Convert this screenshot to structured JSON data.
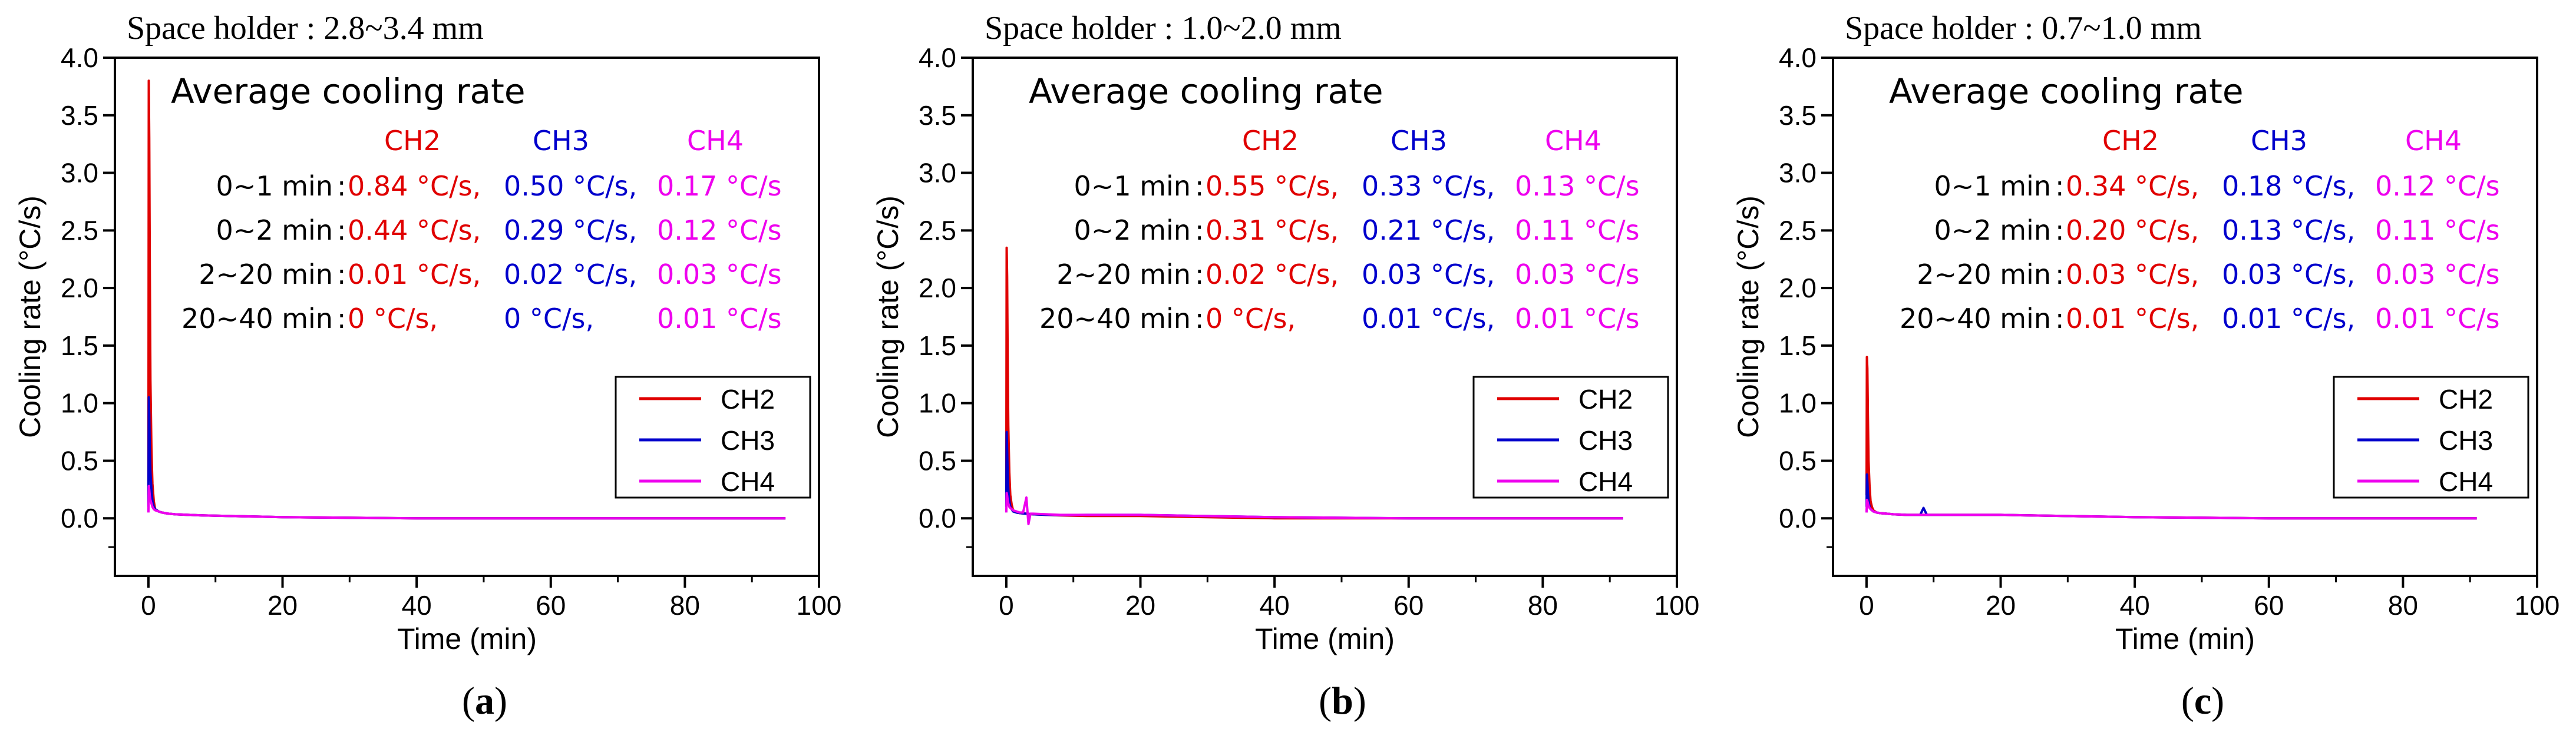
{
  "chart_data": [
    {
      "type": "line",
      "panel_label": "a",
      "title": "Space holder : 2.8~3.4 mm",
      "xlabel": "Time (min)",
      "ylabel": "Cooling rate (°C/s)",
      "xlim": [
        -5,
        100
      ],
      "ylim": [
        -0.5,
        4.0
      ],
      "xticks": [
        0,
        20,
        40,
        60,
        80,
        100
      ],
      "xtick_labels": [
        "0",
        "20",
        "40",
        "60",
        "80",
        "100"
      ],
      "yticks": [
        0.0,
        0.5,
        1.0,
        1.5,
        2.0,
        2.5,
        3.0,
        3.5,
        4.0
      ],
      "ytick_labels": [
        "0.0",
        "0.5",
        "1.0",
        "1.5",
        "2.0",
        "2.5",
        "3.0",
        "3.5",
        "4.0"
      ],
      "legend": [
        "CH2",
        "CH3",
        "CH4"
      ],
      "legend_position": "lower-right",
      "series": [
        {
          "name": "CH2",
          "color": "#e00000",
          "x": [
            0,
            0.05,
            0.12,
            0.2,
            0.3,
            0.45,
            0.6,
            0.8,
            1,
            1.5,
            2,
            3,
            4,
            6,
            8,
            12,
            20,
            40,
            60,
            80,
            95
          ],
          "y": [
            0.2,
            3.8,
            3.3,
            2.2,
            1.2,
            0.6,
            0.3,
            0.15,
            0.08,
            0.06,
            0.05,
            0.04,
            0.035,
            0.03,
            0.025,
            0.02,
            0.01,
            0.0,
            0.0,
            0.0,
            0.0
          ]
        },
        {
          "name": "CH3",
          "color": "#0000cc",
          "x": [
            0,
            0.05,
            0.12,
            0.2,
            0.3,
            0.45,
            0.6,
            0.8,
            1,
            1.5,
            2,
            3,
            4,
            6,
            8,
            12,
            20,
            40,
            60,
            80,
            95
          ],
          "y": [
            0.1,
            1.05,
            0.9,
            0.6,
            0.4,
            0.25,
            0.15,
            0.1,
            0.08,
            0.06,
            0.05,
            0.04,
            0.035,
            0.03,
            0.025,
            0.02,
            0.01,
            0.0,
            0.0,
            0.0,
            0.0
          ]
        },
        {
          "name": "CH4",
          "color": "#ee00ee",
          "x": [
            0,
            0.05,
            0.12,
            0.2,
            0.3,
            0.45,
            0.6,
            0.8,
            1,
            1.5,
            2,
            3,
            4,
            6,
            8,
            12,
            20,
            40,
            60,
            80,
            95
          ],
          "y": [
            0.05,
            0.28,
            0.25,
            0.2,
            0.16,
            0.13,
            0.1,
            0.08,
            0.07,
            0.06,
            0.05,
            0.04,
            0.035,
            0.03,
            0.025,
            0.02,
            0.01,
            0.0,
            0.0,
            0.0,
            0.0
          ]
        }
      ],
      "annotation": {
        "heading": "Average cooling rate",
        "columns": [
          "CH2",
          "CH3",
          "CH4"
        ],
        "rows": [
          {
            "label": "0~1 min",
            "values": [
              "0.84 °C/s,",
              "0.50 °C/s,",
              "0.17 °C/s"
            ]
          },
          {
            "label": "0~2 min",
            "values": [
              "0.44 °C/s,",
              "0.29 °C/s,",
              "0.12 °C/s"
            ]
          },
          {
            "label": "2~20 min",
            "values": [
              "0.01 °C/s,",
              "0.02 °C/s,",
              "0.03 °C/s"
            ]
          },
          {
            "label": "20~40 min",
            "values": [
              "0 °C/s,",
              "0 °C/s,",
              "0.01 °C/s"
            ]
          }
        ]
      }
    },
    {
      "type": "line",
      "panel_label": "b",
      "title": "Space holder : 1.0~2.0 mm",
      "xlabel": "Time (min)",
      "ylabel": "Cooling rate (°C/s)",
      "xlim": [
        -5,
        100
      ],
      "ylim": [
        -0.5,
        4.0
      ],
      "xticks": [
        0,
        20,
        40,
        60,
        80,
        100
      ],
      "xtick_labels": [
        "0",
        "20",
        "40",
        "60",
        "80",
        "100"
      ],
      "yticks": [
        0.0,
        0.5,
        1.0,
        1.5,
        2.0,
        2.5,
        3.0,
        3.5,
        4.0
      ],
      "ytick_labels": [
        "0.0",
        "0.5",
        "1.0",
        "1.5",
        "2.0",
        "2.5",
        "3.0",
        "3.5",
        "4.0"
      ],
      "legend": [
        "CH2",
        "CH3",
        "CH4"
      ],
      "legend_position": "lower-right",
      "series": [
        {
          "name": "CH2",
          "color": "#e00000",
          "x": [
            0,
            0.05,
            0.12,
            0.2,
            0.3,
            0.45,
            0.6,
            0.8,
            1,
            1.5,
            2,
            3,
            4,
            6,
            8,
            12,
            20,
            40,
            60,
            80,
            92
          ],
          "y": [
            0.2,
            2.35,
            2.1,
            1.4,
            0.8,
            0.4,
            0.2,
            0.12,
            0.07,
            0.05,
            0.045,
            0.04,
            0.035,
            0.03,
            0.025,
            0.02,
            0.02,
            0.0,
            0.0,
            0.0,
            0.0
          ]
        },
        {
          "name": "CH3",
          "color": "#0000cc",
          "x": [
            0,
            0.05,
            0.12,
            0.2,
            0.3,
            0.45,
            0.6,
            0.8,
            1,
            1.5,
            2,
            3,
            4,
            6,
            8,
            12,
            20,
            40,
            60,
            80,
            92
          ],
          "y": [
            0.1,
            0.75,
            0.6,
            0.4,
            0.25,
            0.15,
            0.1,
            0.08,
            0.06,
            0.05,
            0.045,
            0.04,
            0.035,
            0.03,
            0.028,
            0.03,
            0.03,
            0.01,
            0.0,
            0.0,
            0.0
          ]
        },
        {
          "name": "CH4",
          "color": "#ee00ee",
          "x": [
            0,
            0.05,
            0.12,
            0.2,
            0.3,
            0.45,
            0.6,
            0.8,
            1,
            1.5,
            2,
            2.5,
            3,
            3.3,
            3.6,
            4,
            6,
            8,
            12,
            20,
            40,
            60,
            80,
            92
          ],
          "y": [
            0.05,
            0.22,
            0.2,
            0.16,
            0.13,
            0.1,
            0.09,
            0.08,
            0.07,
            0.06,
            0.05,
            0.05,
            0.18,
            -0.05,
            0.04,
            0.04,
            0.035,
            0.03,
            0.03,
            0.03,
            0.01,
            0.0,
            0.0,
            0.0
          ]
        }
      ],
      "annotation": {
        "heading": "Average cooling rate",
        "columns": [
          "CH2",
          "CH3",
          "CH4"
        ],
        "rows": [
          {
            "label": "0~1 min",
            "values": [
              "0.55 °C/s,",
              "0.33 °C/s,",
              "0.13 °C/s"
            ]
          },
          {
            "label": "0~2 min",
            "values": [
              "0.31 °C/s,",
              "0.21 °C/s,",
              "0.11 °C/s"
            ]
          },
          {
            "label": "2~20 min",
            "values": [
              "0.02 °C/s,",
              "0.03 °C/s,",
              "0.03 °C/s"
            ]
          },
          {
            "label": "20~40 min",
            "values": [
              "0 °C/s,",
              "0.01 °C/s,",
              "0.01 °C/s"
            ]
          }
        ]
      }
    },
    {
      "type": "line",
      "panel_label": "c",
      "title": "Space holder : 0.7~1.0 mm",
      "xlabel": "Time (min)",
      "ylabel": "Cooling rate (°C/s)",
      "xlim": [
        -5,
        100
      ],
      "ylim": [
        -0.5,
        4.0
      ],
      "xticks": [
        0,
        20,
        40,
        60,
        80,
        100
      ],
      "xtick_labels": [
        "0",
        "20",
        "40",
        "60",
        "80",
        "100"
      ],
      "yticks": [
        0.0,
        0.5,
        1.0,
        1.5,
        2.0,
        2.5,
        3.0,
        3.5,
        4.0
      ],
      "ytick_labels": [
        "0.0",
        "0.5",
        "1.0",
        "1.5",
        "2.0",
        "2.5",
        "3.0",
        "3.5",
        "4.0"
      ],
      "legend": [
        "CH2",
        "CH3",
        "CH4"
      ],
      "legend_position": "lower-right",
      "series": [
        {
          "name": "CH2",
          "color": "#e00000",
          "x": [
            0,
            0.05,
            0.12,
            0.2,
            0.3,
            0.45,
            0.6,
            0.8,
            1,
            1.5,
            2,
            3,
            4,
            6,
            8,
            12,
            20,
            40,
            60,
            80,
            91
          ],
          "y": [
            0.2,
            1.4,
            1.3,
            0.9,
            0.5,
            0.28,
            0.15,
            0.1,
            0.07,
            0.05,
            0.045,
            0.04,
            0.035,
            0.03,
            0.03,
            0.03,
            0.03,
            0.01,
            0.0,
            0.0,
            0.0
          ]
        },
        {
          "name": "CH3",
          "color": "#0000cc",
          "x": [
            0,
            0.05,
            0.12,
            0.2,
            0.3,
            0.45,
            0.6,
            0.8,
            1,
            1.5,
            2,
            3,
            4,
            6,
            8,
            8.5,
            9,
            12,
            20,
            40,
            60,
            80,
            91
          ],
          "y": [
            0.1,
            0.38,
            0.32,
            0.22,
            0.15,
            0.1,
            0.08,
            0.07,
            0.06,
            0.05,
            0.045,
            0.04,
            0.035,
            0.03,
            0.03,
            0.09,
            0.03,
            0.03,
            0.03,
            0.01,
            0.0,
            0.0,
            0.0
          ]
        },
        {
          "name": "CH4",
          "color": "#ee00ee",
          "x": [
            0,
            0.05,
            0.12,
            0.2,
            0.3,
            0.45,
            0.6,
            0.8,
            1,
            1.5,
            2,
            3,
            4,
            6,
            8,
            12,
            20,
            40,
            60,
            80,
            91
          ],
          "y": [
            0.05,
            0.16,
            0.15,
            0.13,
            0.11,
            0.09,
            0.08,
            0.07,
            0.06,
            0.05,
            0.045,
            0.04,
            0.035,
            0.03,
            0.03,
            0.03,
            0.03,
            0.01,
            0.0,
            0.0,
            0.0
          ]
        }
      ],
      "annotation": {
        "heading": "Average cooling rate",
        "columns": [
          "CH2",
          "CH3",
          "CH4"
        ],
        "rows": [
          {
            "label": "0~1 min",
            "values": [
              "0.34 °C/s,",
              "0.18 °C/s,",
              "0.12 °C/s"
            ]
          },
          {
            "label": "0~2 min",
            "values": [
              "0.20 °C/s,",
              "0.13 °C/s,",
              "0.11 °C/s"
            ]
          },
          {
            "label": "2~20 min",
            "values": [
              "0.03 °C/s,",
              "0.03 °C/s,",
              "0.03 °C/s"
            ]
          },
          {
            "label": "20~40 min",
            "values": [
              "0.01 °C/s,",
              "0.01 °C/s,",
              "0.01 °C/s"
            ]
          }
        ]
      }
    }
  ]
}
